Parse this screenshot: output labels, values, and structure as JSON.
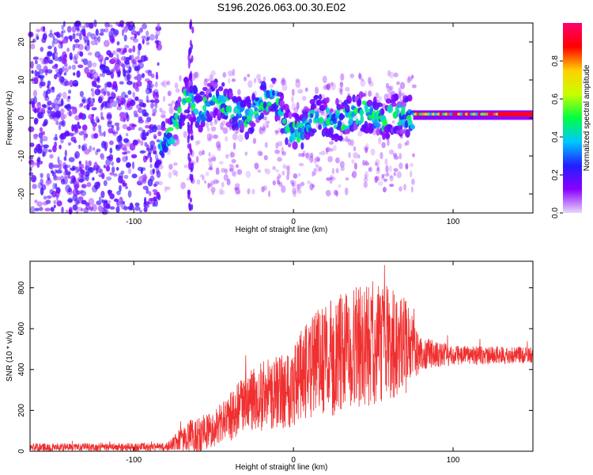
{
  "title": "S196.2026.063.00.30.E02",
  "chart_data": [
    {
      "type": "heatmap",
      "name": "spectrogram",
      "xlabel": "Height of straight line (km)",
      "ylabel": "Frequency (Hz)",
      "xlim": [
        -165,
        150
      ],
      "ylim": [
        -25,
        25
      ],
      "xticks": [
        -100,
        0,
        100
      ],
      "yticks": [
        -20,
        -10,
        0,
        10,
        20
      ],
      "colorbar": {
        "label": "Normalized spectral amplitude",
        "range": [
          0,
          1
        ],
        "ticks": [
          0.0,
          0.2,
          0.4,
          0.6,
          0.8
        ],
        "colormap": [
          "#e8d8f8",
          "#8a00ff",
          "#2020ff",
          "#00c8ff",
          "#00ff40",
          "#c8ff00",
          "#ffd000",
          "#ff0000",
          "#ff0070"
        ]
      },
      "signal_trace": [
        {
          "x": -84,
          "f": -8
        },
        {
          "x": -78,
          "f": -5
        },
        {
          "x": -72,
          "f": -1
        },
        {
          "x": -68,
          "f": 6
        },
        {
          "x": -58,
          "f": 1
        },
        {
          "x": -50,
          "f": 6
        },
        {
          "x": -40,
          "f": 3
        },
        {
          "x": -30,
          "f": 0
        },
        {
          "x": -20,
          "f": 3
        },
        {
          "x": -12,
          "f": 6
        },
        {
          "x": -4,
          "f": -3
        },
        {
          "x": 5,
          "f": -4
        },
        {
          "x": 15,
          "f": 1
        },
        {
          "x": 25,
          "f": -1
        },
        {
          "x": 35,
          "f": 0
        },
        {
          "x": 45,
          "f": 2
        },
        {
          "x": 55,
          "f": -1
        },
        {
          "x": 65,
          "f": 1
        },
        {
          "x": 75,
          "f": 0
        },
        {
          "x": 85,
          "f": 1
        },
        {
          "x": 95,
          "f": 0
        },
        {
          "x": 105,
          "f": 2
        },
        {
          "x": 115,
          "f": 0
        },
        {
          "x": 125,
          "f": 1
        },
        {
          "x": 135,
          "f": 1
        },
        {
          "x": 150,
          "f": 1
        }
      ]
    },
    {
      "type": "line",
      "name": "snr",
      "xlabel": "Height of straight line (km)",
      "ylabel": "SNR (10 * v/v)",
      "xlim": [
        -165,
        150
      ],
      "ylim": [
        0,
        930
      ],
      "xticks": [
        -100,
        0,
        100
      ],
      "yticks": [
        0,
        200,
        400,
        600,
        800
      ],
      "color": "#f03030",
      "envelope": [
        {
          "x": -165,
          "base": 20,
          "amp": 20
        },
        {
          "x": -80,
          "base": 20,
          "amp": 20
        },
        {
          "x": -70,
          "base": 60,
          "amp": 60
        },
        {
          "x": -60,
          "base": 80,
          "amp": 100
        },
        {
          "x": -50,
          "base": 110,
          "amp": 90
        },
        {
          "x": -40,
          "base": 170,
          "amp": 120
        },
        {
          "x": -30,
          "base": 230,
          "amp": 150
        },
        {
          "x": -20,
          "base": 270,
          "amp": 170
        },
        {
          "x": -10,
          "base": 290,
          "amp": 180
        },
        {
          "x": 0,
          "base": 330,
          "amp": 220
        },
        {
          "x": 10,
          "base": 400,
          "amp": 260
        },
        {
          "x": 20,
          "base": 440,
          "amp": 280
        },
        {
          "x": 30,
          "base": 480,
          "amp": 290
        },
        {
          "x": 40,
          "base": 510,
          "amp": 300
        },
        {
          "x": 50,
          "base": 520,
          "amp": 300
        },
        {
          "x": 60,
          "base": 520,
          "amp": 290
        },
        {
          "x": 70,
          "base": 510,
          "amp": 240
        },
        {
          "x": 80,
          "base": 480,
          "amp": 80
        },
        {
          "x": 100,
          "base": 470,
          "amp": 50
        },
        {
          "x": 150,
          "base": 470,
          "amp": 40
        }
      ]
    }
  ]
}
